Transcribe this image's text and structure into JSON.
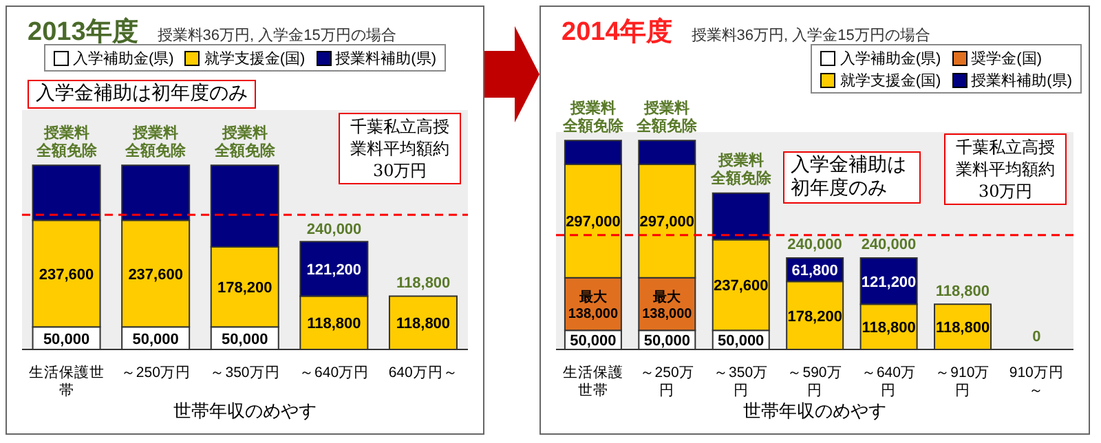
{
  "chart_data": [
    {
      "type": "bar",
      "title": "2013年度",
      "subtitle": "授業料36万円, 入学金15万円の場合",
      "xlabel": "世帯年収のめやす",
      "stacked": true,
      "legend": "top",
      "categories": [
        "生活保護世帯",
        "～250万円",
        "～350万円",
        "～640万円",
        "640万円～"
      ],
      "series": [
        {
          "name": "入学補助金(県)",
          "color": "#ffffff",
          "values": [
            50000,
            50000,
            50000,
            null,
            null
          ],
          "value_labels": [
            "50,000",
            "50,000",
            "50,000",
            null,
            null
          ]
        },
        {
          "name": "就学支援金(国)",
          "color": "#ffcc00",
          "values": [
            237600,
            237600,
            178200,
            118800,
            118800
          ],
          "value_labels": [
            "237,600",
            "237,600",
            "178,200",
            "118,800",
            "118,800"
          ]
        },
        {
          "name": "授業料補助(県)",
          "color": "#000080",
          "values": [
            122400,
            122400,
            181800,
            121200,
            null
          ],
          "value_labels": [
            null,
            null,
            null,
            "121,200",
            null
          ]
        }
      ],
      "totals": [
        null,
        null,
        null,
        "240,000",
        "118,800"
      ],
      "ref_lines": [
        {
          "axis": "y",
          "value": 300000,
          "label": "千葉私立高授業料平均額約30万円",
          "color": "#ff0000",
          "line_style": "dashed"
        }
      ],
      "annotations": [
        "入学金補助は初年度のみ",
        "授業料全額免除",
        "授業料全額免除",
        "授業料全額免除"
      ]
    },
    {
      "type": "bar",
      "title": "2014年度",
      "subtitle": "授業料36万円, 入学金15万円の場合",
      "xlabel": "世帯年収のめやす",
      "stacked": true,
      "legend": "top right",
      "categories": [
        "生活保護世帯",
        "～250万円",
        "～350万円",
        "～590万円",
        "～640万円",
        "～910万円",
        "910万円～"
      ],
      "series": [
        {
          "name": "入学補助金(県)",
          "color": "#ffffff",
          "values": [
            50000,
            50000,
            50000,
            null,
            null,
            null,
            null
          ],
          "value_labels": [
            "50,000",
            "50,000",
            "50,000",
            null,
            null,
            null,
            null
          ]
        },
        {
          "name": "奨学金(国)",
          "color": "#e07020",
          "values": [
            138000,
            138000,
            null,
            null,
            null,
            null,
            null
          ],
          "value_labels": [
            "最大138,000",
            "最大138,000",
            null,
            null,
            null,
            null,
            null
          ]
        },
        {
          "name": "就学支援金(国)",
          "color": "#ffcc00",
          "values": [
            297000,
            297000,
            237600,
            178200,
            118800,
            118800,
            0
          ],
          "value_labels": [
            "297,000",
            "297,000",
            "237,600",
            "178,200",
            "118,800",
            "118,800",
            null
          ]
        },
        {
          "name": "授業料補助(県)",
          "color": "#000080",
          "values": [
            63000,
            63000,
            122400,
            61800,
            121200,
            null,
            null
          ],
          "value_labels": [
            null,
            null,
            null,
            "61,800",
            "121,200",
            null,
            null
          ]
        }
      ],
      "totals": [
        null,
        null,
        null,
        "240,000",
        "240,000",
        "118,800",
        "0"
      ],
      "ref_lines": [
        {
          "axis": "y",
          "value": 300000,
          "label": "千葉私立高授業料平均額約30万円",
          "color": "#ff0000",
          "line_style": "dashed"
        }
      ],
      "annotations": [
        "入学金補助は初年度のみ",
        "授業料全額免除",
        "授業料全額免除",
        "授業料全額免除"
      ]
    }
  ]
}
